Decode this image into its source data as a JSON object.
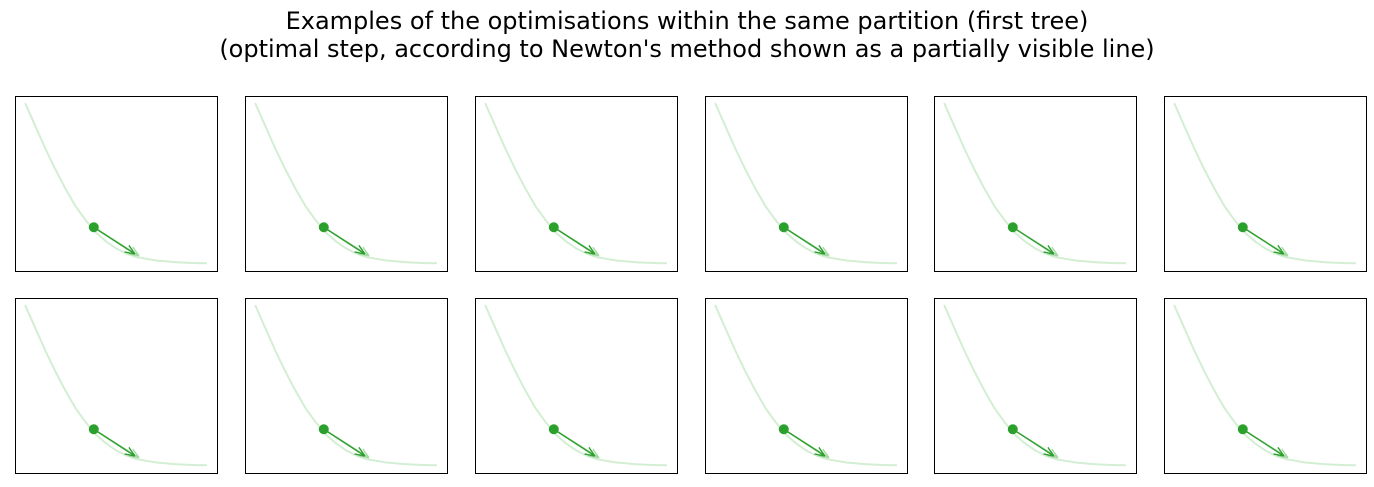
{
  "figure": {
    "title_line1": "Examples of the optimisations within the same partition (first tree)",
    "title_line2": "(optimal step, according to Newton's method shown as a partially visible line)"
  },
  "chart_data": {
    "type": "line",
    "grid": "2x6 small multiples",
    "axis_ticks": "hidden",
    "grid_lines": false,
    "colors": {
      "curve": "#d3eed3",
      "point": "#2ca02c",
      "step_arrow": "#2ca02c",
      "newton_step_arrow": "#a6d9a6"
    },
    "panel": {
      "xlim": [
        0,
        1
      ],
      "ylim": [
        0,
        1
      ],
      "curve": {
        "x": [
          0.05,
          0.1,
          0.15,
          0.2,
          0.25,
          0.3,
          0.35,
          0.4,
          0.45,
          0.5,
          0.55,
          0.6,
          0.65,
          0.7,
          0.75,
          0.8,
          0.85,
          0.9,
          0.95
        ],
        "y": [
          0.96,
          0.83,
          0.7,
          0.58,
          0.47,
          0.37,
          0.29,
          0.22,
          0.17,
          0.13,
          0.1,
          0.08,
          0.07,
          0.06,
          0.055,
          0.05,
          0.047,
          0.045,
          0.044
        ]
      },
      "point": {
        "x": 0.39,
        "y": 0.25
      },
      "step_end": {
        "x": 0.59,
        "y": 0.1
      },
      "newton_step_end": {
        "x": 0.61,
        "y": 0.09
      }
    },
    "panel_count": 12,
    "columns": 6
  }
}
